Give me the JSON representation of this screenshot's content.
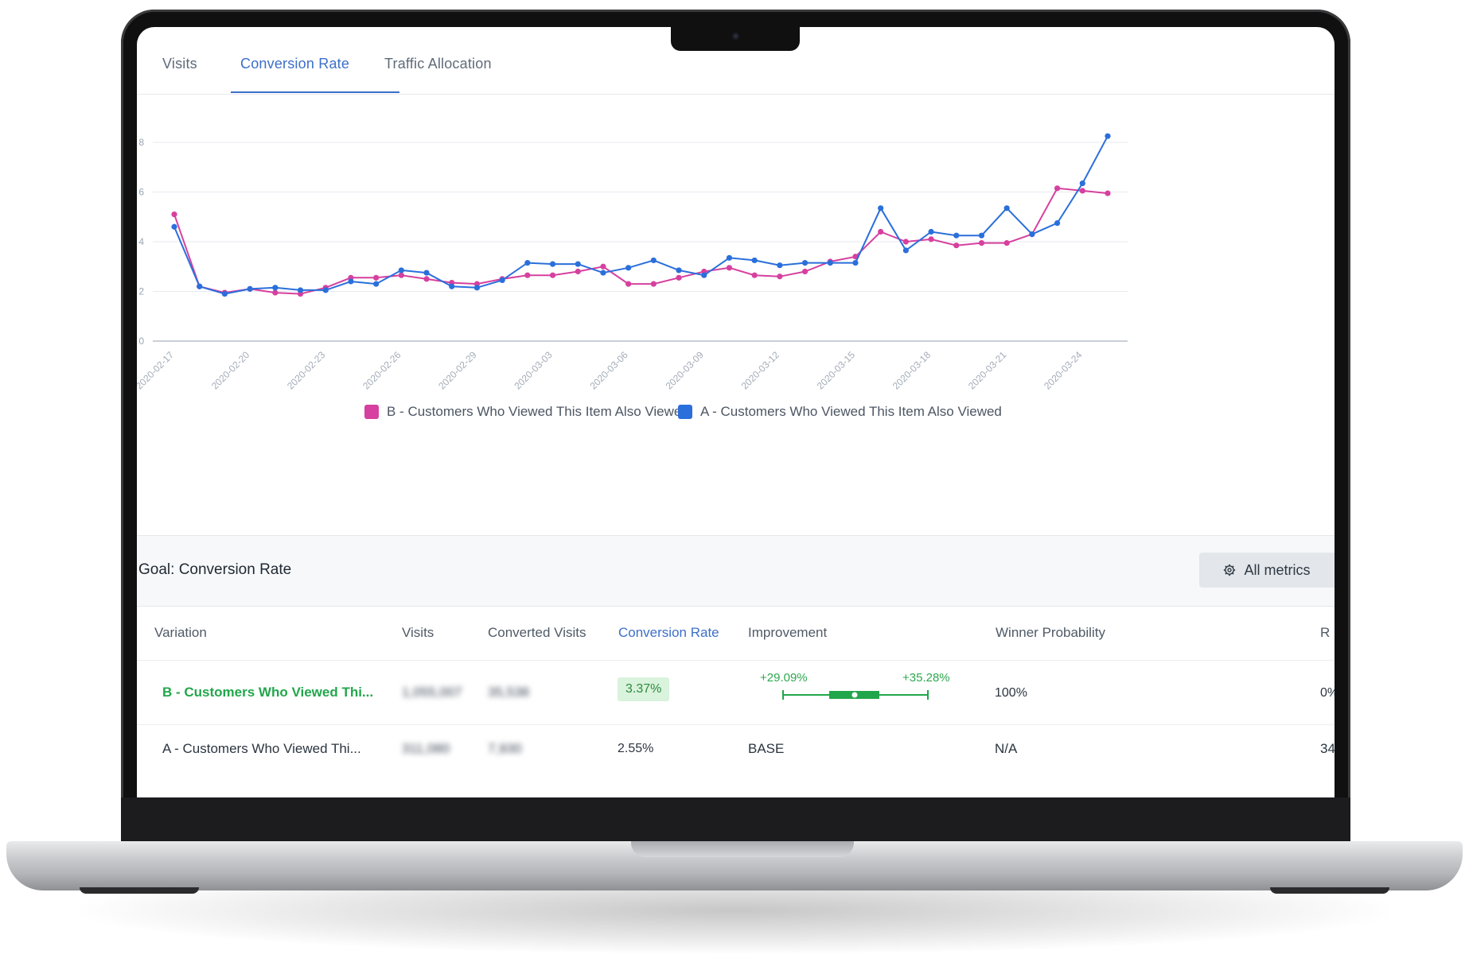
{
  "tabs": [
    {
      "label": "Visits",
      "active": false
    },
    {
      "label": "Conversion Rate",
      "active": true
    },
    {
      "label": "Traffic Allocation",
      "active": false
    }
  ],
  "colors": {
    "accent": "#3d6fc9",
    "series_b": "#d6409f",
    "series_a": "#2a6fdb",
    "positive": "#22a64b"
  },
  "chart_data": {
    "type": "line",
    "y_ticks": [
      0,
      2,
      4,
      6,
      8
    ],
    "ylim": [
      0,
      8
    ],
    "x": [
      "2020-02-17",
      "2020-02-18",
      "2020-02-19",
      "2020-02-20",
      "2020-02-21",
      "2020-02-22",
      "2020-02-23",
      "2020-02-24",
      "2020-02-25",
      "2020-02-26",
      "2020-02-27",
      "2020-02-28",
      "2020-02-29",
      "2020-03-01",
      "2020-03-02",
      "2020-03-03",
      "2020-03-04",
      "2020-03-05",
      "2020-03-06",
      "2020-03-07",
      "2020-03-08",
      "2020-03-09",
      "2020-03-10",
      "2020-03-11",
      "2020-03-12",
      "2020-03-13",
      "2020-03-14",
      "2020-03-15",
      "2020-03-16",
      "2020-03-17",
      "2020-03-18",
      "2020-03-19",
      "2020-03-20",
      "2020-03-21",
      "2020-03-22",
      "2020-03-23",
      "2020-03-24",
      "2020-03-25"
    ],
    "x_tick_labels": [
      "2020-02-17",
      "2020-02-20",
      "2020-02-23",
      "2020-02-26",
      "2020-02-29",
      "2020-03-03",
      "2020-03-06",
      "2020-03-09",
      "2020-03-12",
      "2020-03-15",
      "2020-03-18",
      "2020-03-21",
      "2020-03-24"
    ],
    "series": [
      {
        "name": "B - Customers Who Viewed This Item Also Viewed",
        "values": [
          5.1,
          2.2,
          1.95,
          2.1,
          1.95,
          1.9,
          2.15,
          2.55,
          2.55,
          2.65,
          2.5,
          2.35,
          2.3,
          2.5,
          2.65,
          2.65,
          2.8,
          3.0,
          2.3,
          2.3,
          2.55,
          2.8,
          2.95,
          2.65,
          2.6,
          2.8,
          3.2,
          3.4,
          4.4,
          4.0,
          4.1,
          3.85,
          3.95,
          3.95,
          4.3,
          6.15,
          6.05,
          5.95
        ]
      },
      {
        "name": "A - Customers Who Viewed This Item Also Viewed",
        "values": [
          4.6,
          2.2,
          1.9,
          2.1,
          2.15,
          2.05,
          2.05,
          2.4,
          2.3,
          2.85,
          2.75,
          2.2,
          2.15,
          2.45,
          3.15,
          3.1,
          3.1,
          2.75,
          2.95,
          3.25,
          2.85,
          2.65,
          3.35,
          3.25,
          3.05,
          3.15,
          3.15,
          3.15,
          5.35,
          3.65,
          4.4,
          4.25,
          4.25,
          5.35,
          4.3,
          4.75,
          6.35,
          8.25
        ]
      }
    ]
  },
  "goal": {
    "title": "Goal: Conversion Rate",
    "metrics_button": "All metrics",
    "metrics_icon": "gear-icon"
  },
  "table": {
    "headers": [
      "Variation",
      "Visits",
      "Converted Visits",
      "Conversion Rate",
      "Improvement",
      "Winner Probability",
      "R"
    ],
    "rows": [
      {
        "variation": "B - Customers Who Viewed Thi...",
        "visits": "1,055,007",
        "converted": "35,538",
        "rate": "3.37%",
        "improve_low": "+29.09%",
        "improve_high": "+35.28%",
        "improvement_base": "",
        "winner": "100%",
        "trunc": "0%"
      },
      {
        "variation": "A - Customers Who Viewed Thi...",
        "visits": "311,080",
        "converted": "7,930",
        "rate": "2.55%",
        "improve_low": "",
        "improve_high": "",
        "improvement_base": "BASE",
        "winner": "N/A",
        "trunc": "34"
      }
    ]
  }
}
